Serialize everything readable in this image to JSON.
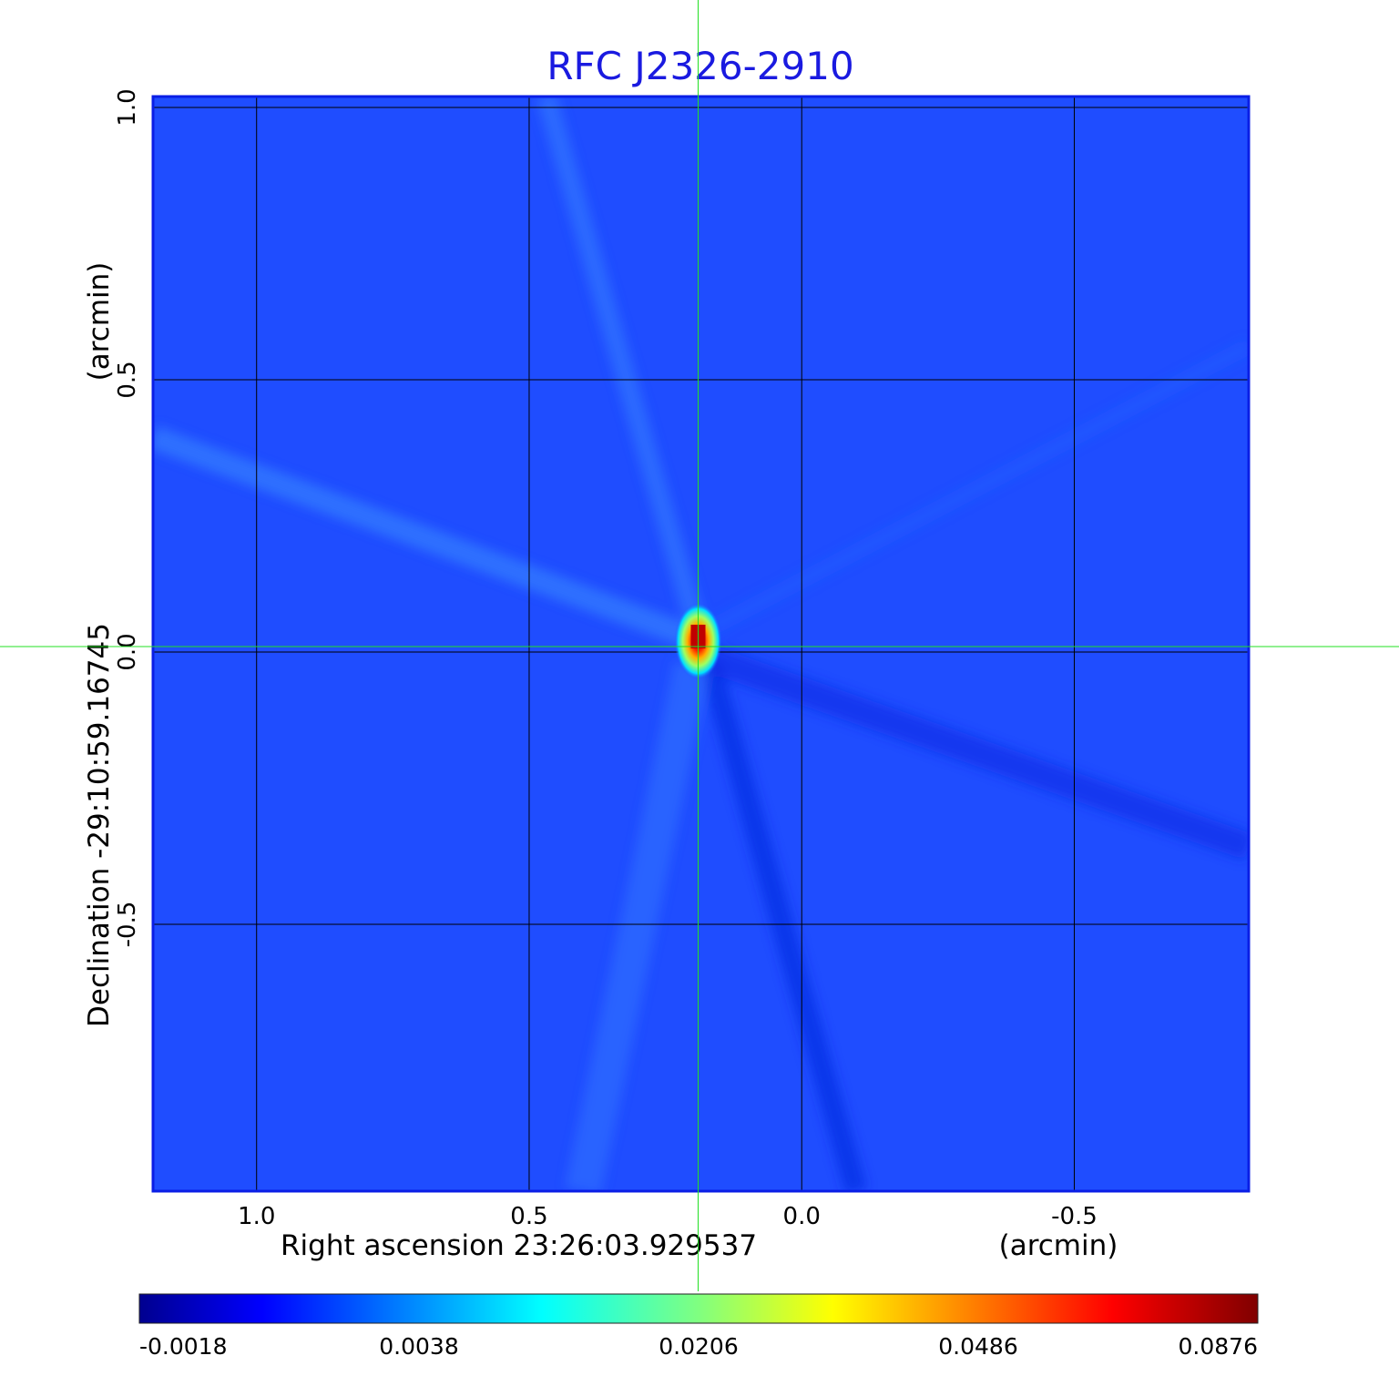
{
  "chart_data": {
    "type": "heatmap",
    "title": "RFC J2326-2910",
    "colormap": "jet",
    "background_color": "#1f4dff",
    "xlabel": "Right ascension  23:26:03.929537",
    "xlabel_unit": "(arcmin)",
    "ylabel": "Declination  -29:10:59.16745",
    "ylabel_unit": "(arcmin)",
    "xlim": [
      1.19,
      -0.82
    ],
    "ylim": [
      -0.99,
      1.02
    ],
    "x_ticks": [
      {
        "value": 1.0,
        "label": "1.0"
      },
      {
        "value": 0.5,
        "label": "0.5"
      },
      {
        "value": 0.0,
        "label": "0.0"
      },
      {
        "value": -0.5,
        "label": "-0.5"
      }
    ],
    "y_ticks": [
      {
        "value": 1.0,
        "label": "1.0"
      },
      {
        "value": 0.5,
        "label": "0.5"
      },
      {
        "value": 0.0,
        "label": "0.0"
      },
      {
        "value": -0.5,
        "label": "-0.5"
      }
    ],
    "grid": true,
    "crosshair": {
      "x": 0.19,
      "y": 0.01
    },
    "peak": {
      "x": 0.19,
      "y": 0.02,
      "value": 0.0876
    },
    "colorbar": {
      "orientation": "horizontal",
      "ticks": [
        "-0.0018",
        "0.0038",
        "0.0206",
        "0.0486",
        "0.0876"
      ]
    }
  }
}
